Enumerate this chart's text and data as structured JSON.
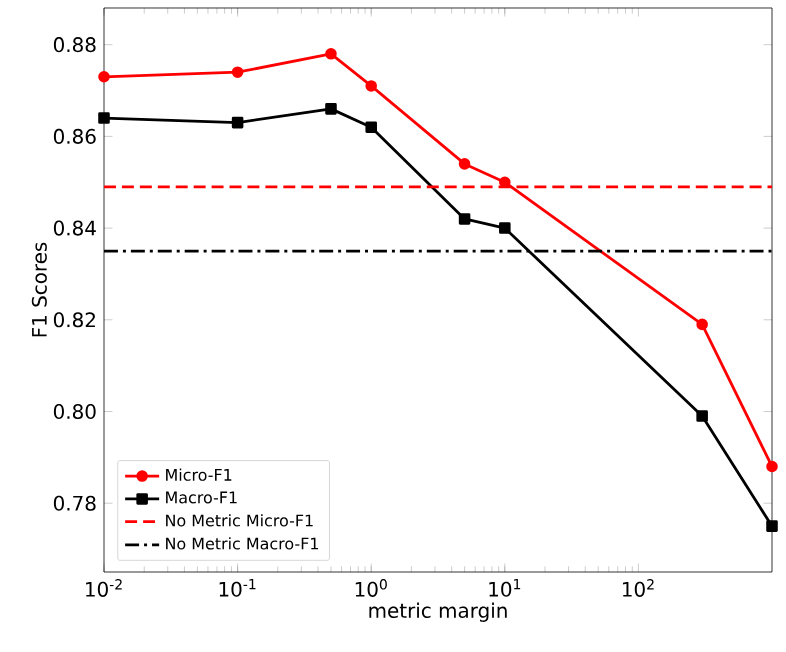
{
  "chart_data": {
    "type": "line",
    "xlabel": "metric margin",
    "ylabel": "F1 Scores",
    "log": "x",
    "x": [
      0.01,
      0.1,
      0.5,
      1,
      5,
      10,
      300,
      1000
    ],
    "series": [
      {
        "name": "Micro-F1",
        "color": "#ff0000",
        "marker": "circle",
        "values": [
          0.873,
          0.874,
          0.878,
          0.871,
          0.854,
          0.85,
          0.819,
          0.788
        ]
      },
      {
        "name": "Macro-F1",
        "color": "#000000",
        "marker": "square",
        "values": [
          0.864,
          0.863,
          0.866,
          0.862,
          0.842,
          0.84,
          0.799,
          0.775
        ]
      }
    ],
    "ref_lines": [
      {
        "axis": "y",
        "value": 0.849,
        "label": "No Metric Micro-F1",
        "color": "#ff0000",
        "line_style": "dashed"
      },
      {
        "axis": "y",
        "value": 0.835,
        "label": "No Metric Macro-F1",
        "color": "#000000",
        "line_style": "dashdot"
      }
    ],
    "xlim": [
      0.01,
      1000
    ],
    "ylim": [
      0.765,
      0.888
    ],
    "xticks": [
      {
        "value": 0.01,
        "label": "10$^{-2}$"
      },
      {
        "value": 0.1,
        "label": "10$^{-1}$"
      },
      {
        "value": 1,
        "label": "10$^{0}$"
      },
      {
        "value": 10,
        "label": "10$^{1}$"
      },
      {
        "value": 100,
        "label": "10$^{2}$"
      }
    ],
    "yticks": [
      {
        "value": 0.78,
        "label": "0.78"
      },
      {
        "value": 0.8,
        "label": "0.80"
      },
      {
        "value": 0.82,
        "label": "0.82"
      },
      {
        "value": 0.84,
        "label": "0.84"
      },
      {
        "value": 0.86,
        "label": "0.86"
      },
      {
        "value": 0.88,
        "label": "0.88"
      }
    ],
    "legend": "bottom left"
  }
}
